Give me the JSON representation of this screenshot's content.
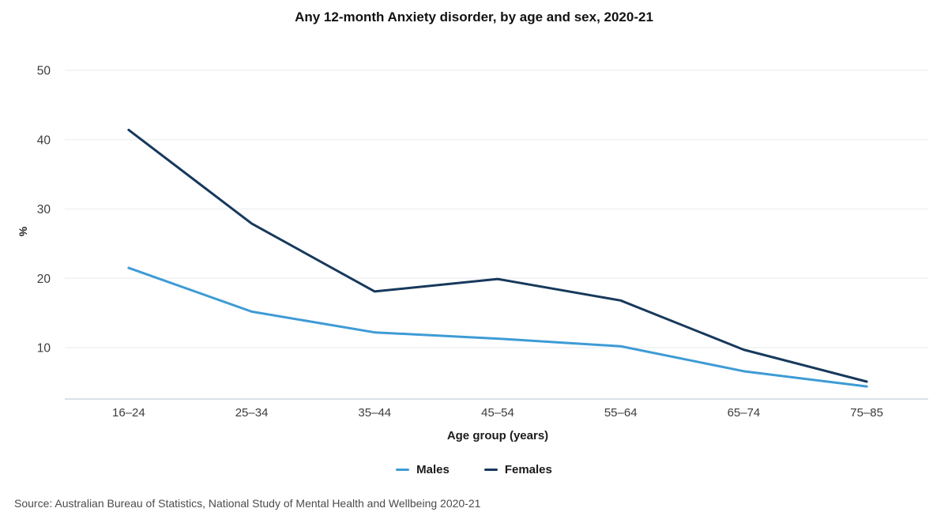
{
  "title": "Any 12-month Anxiety disorder, by age and sex, 2020-21",
  "source_note": "Source: Australian Bureau of Statistics, National Study of Mental Health and Wellbeing 2020-21",
  "colors": {
    "males_line": "#3E9BD5",
    "females_line": "#17395C",
    "gridline": "#ECEEF1",
    "axis_line": "#CBD7E0",
    "tick_text": "#3C3C3C"
  },
  "chart_data": {
    "type": "line",
    "title": "Any 12-month Anxiety disorder, by age and sex, 2020-21",
    "categories": [
      "16–24",
      "25–34",
      "35–44",
      "45–54",
      "55–64",
      "65–74",
      "75–85"
    ],
    "series": [
      {
        "name": "Males",
        "color": "#3E9BD5",
        "values": [
          21.5,
          15.2,
          12.2,
          11.3,
          10.2,
          6.6,
          4.4
        ]
      },
      {
        "name": "Females",
        "color": "#17395C",
        "values": [
          41.4,
          27.9,
          18.1,
          19.9,
          16.8,
          9.7,
          5.1
        ]
      }
    ],
    "xlabel": "Age group (years)",
    "ylabel": "%",
    "yticks": [
      10,
      20,
      30,
      40,
      50
    ],
    "ylim": [
      2.6,
      52
    ],
    "grid": true,
    "legend_position": "bottom"
  }
}
